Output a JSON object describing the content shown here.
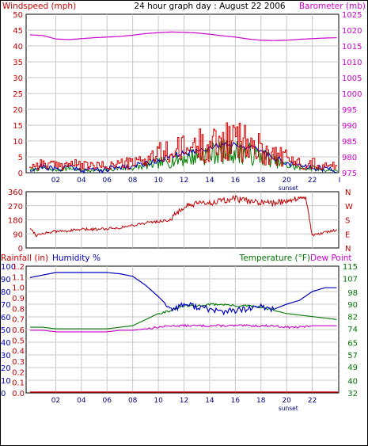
{
  "colors": {
    "wind": "#d40000",
    "gust_green": "#008000",
    "wind_avg_blue": "#0000c8",
    "baro": "#cc00cc",
    "winddir": "#c00000",
    "rain": "#c00000",
    "humidity": "#0000c0",
    "temperature": "#007700",
    "dewpoint": "#cc00cc",
    "grid": "#c8c8c8",
    "axis": "#000000"
  },
  "chart_data": [
    {
      "type": "line",
      "panel": "wind-barometer",
      "title": "24 hour graph day : August 22 2006",
      "left_label": "Windspeed (mph)",
      "right_label": "Barometer (mb)",
      "left_ticks": [
        0,
        5,
        10,
        15,
        20,
        25,
        30,
        35,
        40,
        45,
        50
      ],
      "right_ticks": [
        975,
        980,
        985,
        990,
        995,
        1000,
        1005,
        1010,
        1015,
        1020,
        1025
      ],
      "ylim_left": [
        0,
        50
      ],
      "ylim_right": [
        975,
        1025
      ],
      "x_ticks": [
        "02",
        "04",
        "06",
        "08",
        "10",
        "12",
        "14",
        "16",
        "18",
        "20",
        "22"
      ],
      "sunset_label": "sunset",
      "sunset_hour": 20.5,
      "end_tick": "I",
      "series": [
        {
          "role": "barometer",
          "axis": "right",
          "x": [
            0,
            1,
            2,
            3,
            4,
            5,
            6,
            7,
            8,
            9,
            10,
            11,
            12,
            13,
            14,
            15,
            16,
            17,
            18,
            19,
            20,
            21,
            22,
            23,
            24
          ],
          "values": [
            1018.5,
            1018.3,
            1017.2,
            1017.0,
            1017.3,
            1017.6,
            1017.8,
            1018.0,
            1018.4,
            1018.9,
            1019.2,
            1019.4,
            1019.3,
            1019.1,
            1018.7,
            1018.2,
            1017.8,
            1017.2,
            1016.8,
            1016.7,
            1016.8,
            1017.1,
            1017.3,
            1017.5,
            1017.6
          ]
        },
        {
          "role": "windspeed",
          "axis": "left",
          "x": [
            0,
            1,
            2,
            3,
            4,
            5,
            6,
            7,
            8,
            9,
            10,
            11,
            12,
            13,
            14,
            15,
            16,
            17,
            18,
            19,
            20,
            21,
            22,
            23,
            24
          ],
          "values": [
            2,
            3,
            2,
            3,
            2,
            2,
            2,
            3,
            3,
            4,
            6,
            7,
            8,
            10,
            11,
            12,
            12,
            11,
            9,
            7,
            5,
            3,
            3,
            2,
            2
          ]
        },
        {
          "role": "wind-gust",
          "axis": "left",
          "x": [
            0,
            1,
            2,
            3,
            4,
            5,
            6,
            7,
            8,
            9,
            10,
            11,
            12,
            13,
            14,
            15,
            16,
            17,
            18,
            19,
            20,
            21,
            22,
            23,
            24
          ],
          "values": [
            3,
            4,
            3,
            4,
            3,
            3,
            3,
            4,
            4,
            6,
            8,
            9,
            10,
            12,
            12,
            13,
            14,
            12,
            10,
            8,
            6,
            4,
            4,
            3,
            3
          ]
        },
        {
          "role": "wind-average",
          "axis": "left",
          "x": [
            0,
            1,
            2,
            3,
            4,
            5,
            6,
            7,
            8,
            9,
            10,
            11,
            12,
            13,
            14,
            15,
            16,
            17,
            18,
            19,
            20,
            21,
            22,
            23,
            24
          ],
          "values": [
            1,
            2,
            1,
            2,
            1,
            1,
            1,
            2,
            2,
            3,
            4,
            5,
            6,
            7,
            8,
            9,
            9,
            8,
            7,
            5,
            3,
            2,
            2,
            1,
            1
          ]
        }
      ]
    },
    {
      "type": "line",
      "panel": "wind-direction",
      "left_ticks": [
        0,
        90,
        180,
        270,
        360
      ],
      "right_ticks": [
        "N",
        "E",
        "S",
        "W",
        "N"
      ],
      "ylim": [
        0,
        360
      ],
      "series": [
        {
          "role": "wind-direction",
          "x": [
            0,
            0.5,
            1,
            2,
            3,
            4,
            5,
            6,
            7,
            8,
            9,
            10,
            11,
            11.5,
            12,
            13,
            14,
            15,
            16,
            17,
            18,
            19,
            20,
            21,
            21.5,
            22,
            23,
            24
          ],
          "values": [
            130,
            80,
            95,
            105,
            110,
            118,
            120,
            125,
            130,
            145,
            160,
            170,
            180,
            230,
            260,
            280,
            290,
            300,
            315,
            300,
            290,
            285,
            305,
            320,
            320,
            80,
            100,
            120
          ]
        }
      ]
    },
    {
      "type": "line",
      "panel": "rain-humidity-temperature",
      "left_label_rain": "Rainfall (in)",
      "left_label_hum": "Humidity %",
      "right_label_temp": "Temperature (°F)",
      "right_label_dew": "Dew Point",
      "hum_ticks": [
        0,
        10,
        20,
        30,
        40,
        50,
        60,
        70,
        80,
        90,
        100
      ],
      "rain_ticks": [
        "0.0",
        "0.1",
        "0.2",
        "0.3",
        "0.4",
        "0.5",
        "0.6",
        "0.7",
        "0.8",
        "0.9",
        "1.0",
        "1.1",
        "1.2"
      ],
      "temp_ticks": [
        32,
        40,
        49,
        57,
        65,
        74,
        82,
        90,
        98,
        107,
        115
      ],
      "ylim_hum": [
        0,
        100
      ],
      "ylim_rain": [
        0,
        1.2
      ],
      "ylim_temp": [
        32,
        115
      ],
      "x_ticks": [
        "02",
        "04",
        "06",
        "08",
        "10",
        "12",
        "14",
        "16",
        "18",
        "20",
        "22"
      ],
      "sunset_label": "sunset",
      "series": [
        {
          "role": "humidity",
          "x": [
            0,
            1,
            2,
            3,
            4,
            5,
            6,
            7,
            8,
            9,
            10,
            11,
            12,
            13,
            14,
            15,
            16,
            17,
            18,
            19,
            20,
            21,
            22,
            23,
            24
          ],
          "values": [
            91,
            93,
            95,
            95,
            95,
            95,
            95,
            94,
            92,
            85,
            76,
            66,
            70,
            68,
            66,
            64,
            65,
            66,
            68,
            66,
            70,
            73,
            80,
            83,
            83
          ]
        },
        {
          "role": "temperature",
          "x": [
            0,
            1,
            2,
            3,
            4,
            5,
            6,
            7,
            8,
            9,
            10,
            11,
            12,
            13,
            14,
            15,
            16,
            17,
            18,
            19,
            20,
            21,
            22,
            23,
            24
          ],
          "values": [
            75,
            75,
            74,
            74,
            74,
            74,
            74,
            75,
            76,
            80,
            84,
            86,
            89,
            89,
            90,
            90,
            89,
            89,
            88,
            86,
            84,
            83,
            82,
            81,
            80
          ]
        },
        {
          "role": "dewpoint",
          "x": [
            0,
            1,
            2,
            3,
            4,
            5,
            6,
            7,
            8,
            9,
            10,
            11,
            12,
            13,
            14,
            15,
            16,
            17,
            18,
            19,
            20,
            21,
            22,
            23,
            24
          ],
          "values": [
            73,
            73,
            72,
            72,
            72,
            72,
            72,
            73,
            73,
            74,
            75,
            76,
            76,
            76,
            76,
            76,
            76,
            76,
            76,
            76,
            75,
            75,
            76,
            76,
            76
          ]
        },
        {
          "role": "rainfall",
          "x": [
            0,
            24
          ],
          "values": [
            0,
            0
          ]
        }
      ]
    }
  ]
}
